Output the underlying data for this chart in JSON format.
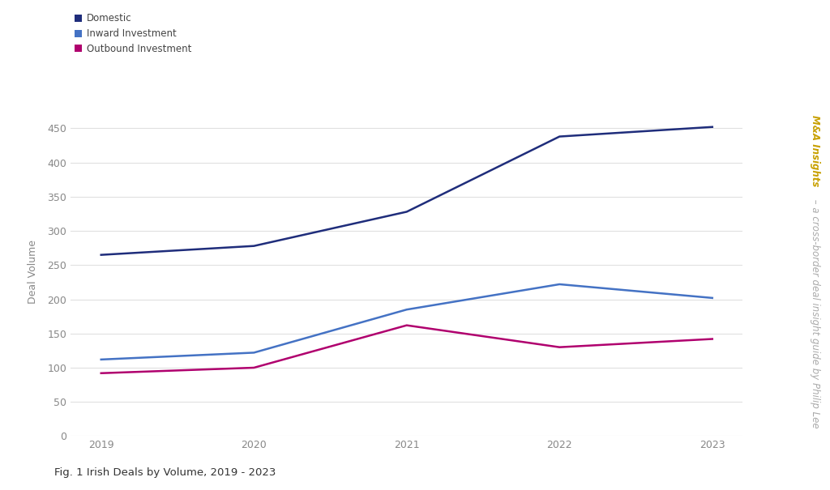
{
  "years": [
    2019,
    2020,
    2021,
    2022,
    2023
  ],
  "domestic": [
    265,
    278,
    328,
    438,
    452
  ],
  "inward_investment": [
    112,
    122,
    185,
    222,
    202
  ],
  "outbound_investment": [
    92,
    100,
    162,
    130,
    142
  ],
  "domestic_color": "#1f2d7b",
  "inward_color": "#4472c4",
  "outbound_color": "#b0006e",
  "background_color": "#ffffff",
  "ylabel": "Deal Volume",
  "caption": "Fig. 1 Irish Deals by Volume, 2019 - 2023",
  "side_text_main": "M&A Insights",
  "side_text_rest": " – a cross-border deal insight guide by Philip Lee",
  "side_text_color_main": "#c8a000",
  "side_text_color_rest": "#aaaaaa",
  "ylim": [
    0,
    480
  ],
  "yticks": [
    0,
    50,
    100,
    150,
    200,
    250,
    300,
    350,
    400,
    450
  ],
  "legend_labels": [
    "Domestic",
    "Inward Investment",
    "Outbound Investment"
  ],
  "grid_color": "#e0e0e0",
  "tick_color": "#888888",
  "line_width": 1.8
}
